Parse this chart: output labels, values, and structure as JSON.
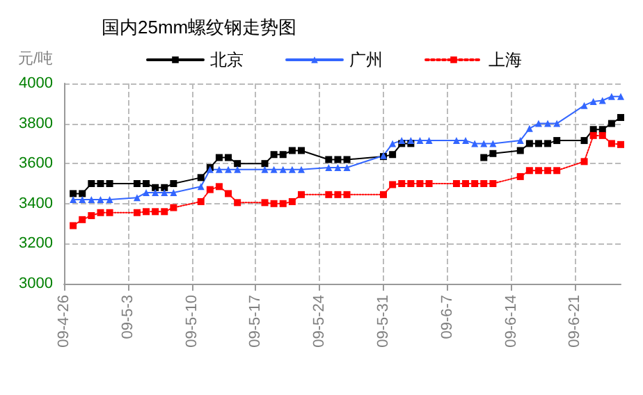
{
  "chart_data": {
    "type": "line",
    "title": "国内25mm螺纹钢走势图",
    "ylabel": "元/吨",
    "x": [
      "--04-27",
      "--04-28",
      "--04-29",
      "--04-30",
      "--05-01",
      "--05-04",
      "--05-05",
      "--05-06",
      "--05-07",
      "--05-08",
      "--05-11",
      "--05-12",
      "--05-13",
      "--05-14",
      "--05-15",
      "--05-18",
      "--05-19",
      "--05-20",
      "--05-21",
      "--05-22",
      "--05-25",
      "--05-26",
      "--05-27",
      "--05-31",
      "--06-01",
      "--06-02",
      "--06-03",
      "--06-04",
      "--06-05",
      "--06-08",
      "--06-09",
      "--06-10",
      "--06-11",
      "--06-12",
      "--06-15",
      "--06-16",
      "--06-17",
      "--06-18",
      "--06-19",
      "--06-22",
      "--06-23",
      "--06-24",
      "--06-25",
      "--06-26"
    ],
    "series": [
      {
        "name": "北京",
        "color": "#000000",
        "marker": "square",
        "line_style": "solid",
        "values": [
          3450,
          3450,
          3500,
          3500,
          3500,
          3500,
          3500,
          3480,
          3480,
          3500,
          3530,
          3580,
          3630,
          3630,
          3600,
          3600,
          3645,
          3645,
          3665,
          3665,
          3620,
          3620,
          3620,
          3635,
          3645,
          3700,
          3700,
          null,
          null,
          null,
          null,
          null,
          3630,
          3650,
          3665,
          3700,
          3700,
          3700,
          3715,
          3715,
          3770,
          3770,
          3800,
          3830
        ]
      },
      {
        "name": "广州",
        "color": "#3366ff",
        "marker": "triangle",
        "line_style": "solid",
        "values": [
          3420,
          3420,
          3420,
          3420,
          3420,
          3430,
          3455,
          3455,
          3455,
          3455,
          3485,
          3570,
          3570,
          3570,
          3570,
          3570,
          3570,
          3570,
          3570,
          3570,
          3580,
          3580,
          3580,
          3640,
          3700,
          3715,
          3715,
          3715,
          3715,
          3715,
          3715,
          3700,
          3700,
          3700,
          3715,
          3775,
          3800,
          3800,
          3800,
          3890,
          3910,
          3915,
          3935,
          3935
        ]
      },
      {
        "name": "上海",
        "color": "#ff0000",
        "marker": "square",
        "line_style": "dotted",
        "values": [
          3290,
          3320,
          3340,
          3355,
          3355,
          3355,
          3360,
          3360,
          3360,
          3380,
          3410,
          3470,
          3485,
          3450,
          3405,
          3405,
          3400,
          3400,
          3410,
          3445,
          3445,
          3445,
          3445,
          3445,
          3495,
          3500,
          3500,
          3500,
          3500,
          3500,
          3500,
          3500,
          3500,
          3500,
          3535,
          3565,
          3565,
          3565,
          3565,
          3610,
          3740,
          3740,
          3700,
          3695
        ]
      }
    ],
    "xlim": [
      "--04-26",
      "--06-26"
    ],
    "xticks": [
      {
        "value": "--04-26",
        "label": "09-4-26"
      },
      {
        "value": "--05-03",
        "label": "09-5-3"
      },
      {
        "value": "--05-10",
        "label": "09-5-10"
      },
      {
        "value": "--05-17",
        "label": "09-5-17"
      },
      {
        "value": "--05-24",
        "label": "09-5-24"
      },
      {
        "value": "--05-31",
        "label": "09-5-31"
      },
      {
        "value": "--06-07",
        "label": "09-6-7"
      },
      {
        "value": "--06-14",
        "label": "09-6-14"
      },
      {
        "value": "--06-21",
        "label": "09-6-21"
      }
    ],
    "ylim": [
      3000,
      4000
    ],
    "yticks": [
      3000,
      3200,
      3400,
      3600,
      3800,
      4000
    ],
    "grid": true,
    "legend": "top"
  }
}
